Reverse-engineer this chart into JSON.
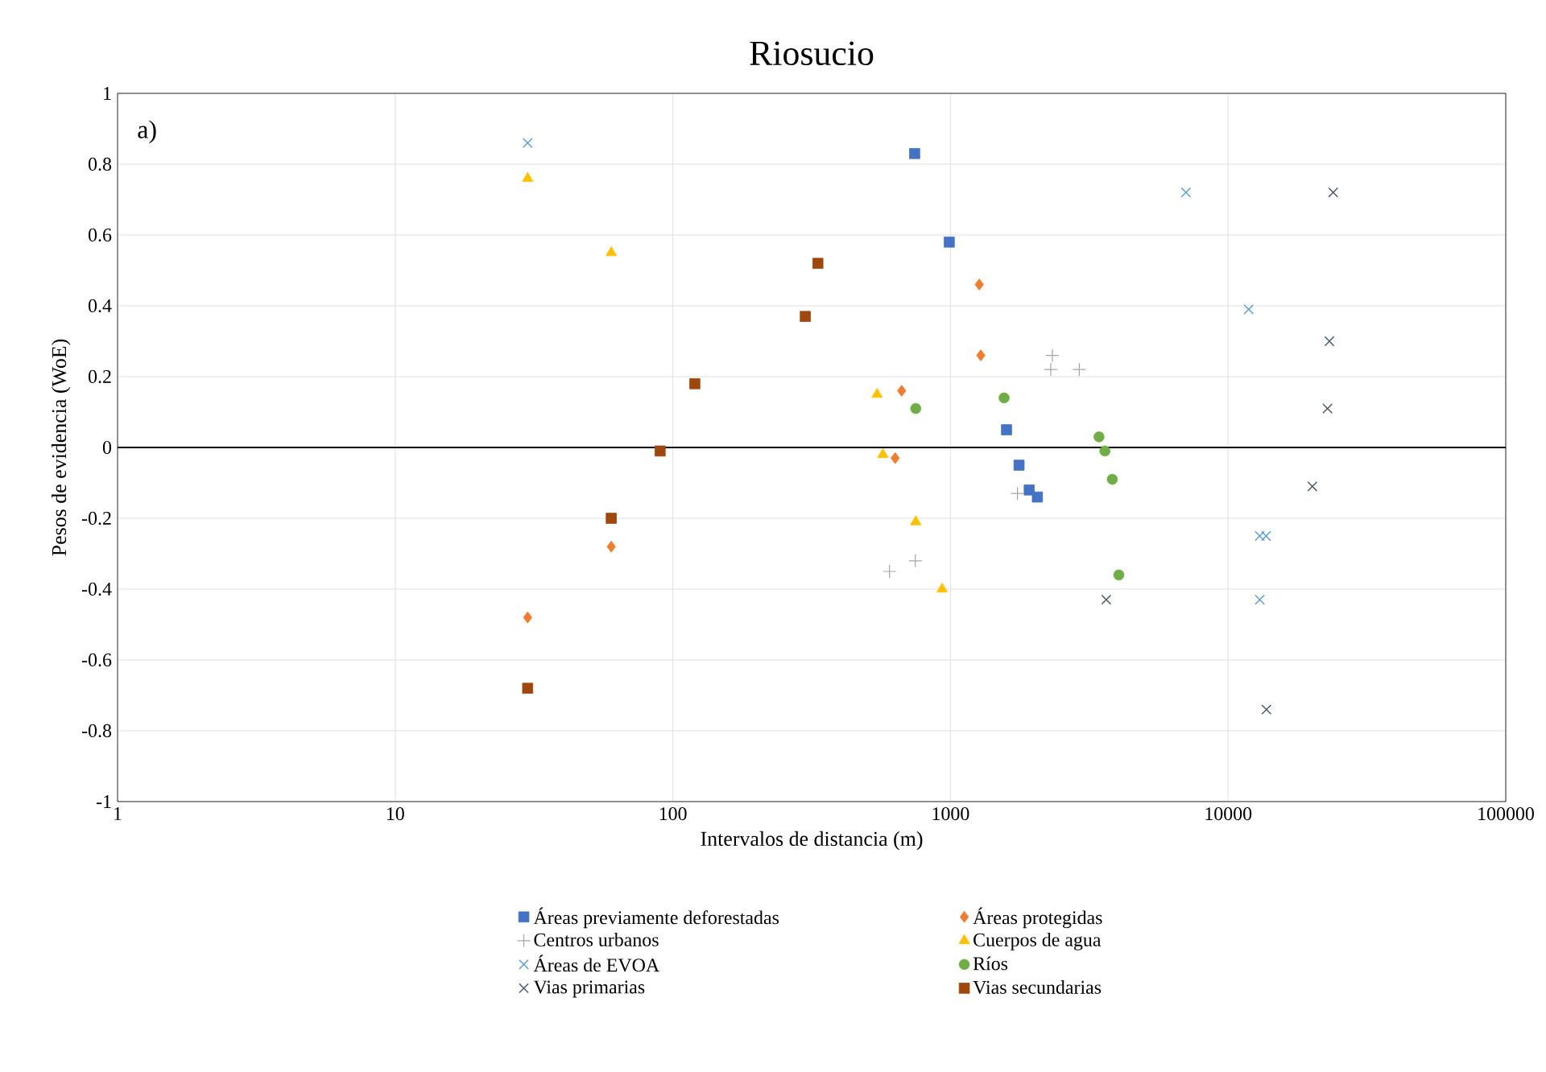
{
  "chart_data": {
    "type": "scatter",
    "title": "Riosucio",
    "xlabel": "Intervalos de distancia (m)",
    "ylabel": "Pesos de evidencia (WoE)",
    "annotations": [
      "a)"
    ],
    "log": "x",
    "grid": true,
    "legend": "bottom",
    "xlim": [
      1,
      100000
    ],
    "xticks": [
      1,
      10,
      100,
      1000,
      10000,
      100000
    ],
    "ylim": [
      -1,
      1
    ],
    "yticks": [
      -1,
      -0.8,
      -0.6,
      -0.4,
      -0.2,
      0,
      0.2,
      0.4,
      0.6,
      0.8,
      1
    ],
    "ref_lines": [
      {
        "axis": "y",
        "value": 0,
        "color": "#000000"
      }
    ],
    "series": [
      {
        "name": "Áreas previamente deforestadas",
        "color": "#4472c4",
        "marker": "square",
        "x": [
          743,
          990,
          1592,
          1766,
          1922,
          2056
        ],
        "values": [
          0.83,
          0.58,
          0.05,
          -0.05,
          -0.12,
          -0.14
        ]
      },
      {
        "name": "Áreas protegidas",
        "color": "#ed7d31",
        "marker": "diamond",
        "x": [
          30,
          60,
          632,
          667,
          1270,
          1286
        ],
        "values": [
          -0.48,
          -0.28,
          -0.03,
          0.16,
          0.46,
          0.26
        ]
      },
      {
        "name": "Centros urbanos",
        "color": "#a5a5a5",
        "marker": "plus",
        "x": [
          603,
          747,
          1743,
          2297,
          2327,
          2911
        ],
        "values": [
          -0.35,
          -0.32,
          -0.13,
          0.22,
          0.26,
          0.22
        ]
      },
      {
        "name": "Cuerpos de agua",
        "color": "#ffc000",
        "marker": "triangle",
        "x": [
          30,
          60,
          544,
          571,
          750,
          933
        ],
        "values": [
          0.76,
          0.55,
          0.15,
          -0.02,
          -0.21,
          -0.4
        ]
      },
      {
        "name": "Áreas de EVOA",
        "color": "#5b9bd5",
        "marker": "cross",
        "x": [
          30,
          7050,
          11860,
          13000,
          13700,
          13000
        ],
        "values": [
          0.86,
          0.72,
          0.39,
          -0.25,
          -0.25,
          -0.43
        ]
      },
      {
        "name": "Ríos",
        "color": "#70ad47",
        "marker": "circle",
        "x": [
          750,
          1560,
          3427,
          3600,
          3827,
          4040
        ],
        "values": [
          0.11,
          0.14,
          0.03,
          -0.01,
          -0.09,
          -0.36
        ]
      },
      {
        "name": "Vias primarias",
        "color": "#44546a",
        "marker": "cross",
        "x": [
          3640,
          13740,
          20100,
          22800,
          23160,
          23900
        ],
        "values": [
          -0.43,
          -0.74,
          -0.11,
          0.11,
          0.3,
          0.72
        ]
      },
      {
        "name": "Vias secundarias",
        "color": "#9e480e",
        "marker": "square",
        "x": [
          30,
          60,
          90,
          120,
          300,
          333
        ],
        "values": [
          -0.68,
          -0.2,
          -0.01,
          0.18,
          0.37,
          0.52
        ]
      }
    ]
  }
}
